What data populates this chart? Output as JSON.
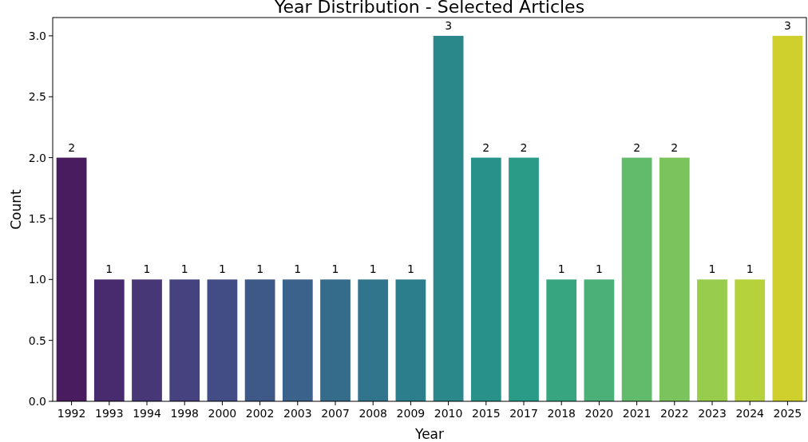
{
  "chart_data": {
    "type": "bar",
    "title": "Year Distribution - Selected Articles",
    "xlabel": "Year",
    "ylabel": "Count",
    "categories": [
      "1992",
      "1993",
      "1994",
      "1998",
      "2000",
      "2002",
      "2003",
      "2007",
      "2008",
      "2009",
      "2010",
      "2015",
      "2017",
      "2018",
      "2020",
      "2021",
      "2022",
      "2023",
      "2024",
      "2025"
    ],
    "values": [
      2,
      1,
      1,
      1,
      1,
      1,
      1,
      1,
      1,
      1,
      3,
      2,
      2,
      1,
      1,
      2,
      2,
      1,
      1,
      3
    ],
    "colors": [
      "#481c5e",
      "#482a6e",
      "#473777",
      "#45427f",
      "#424d85",
      "#3e5888",
      "#3a628b",
      "#356c8c",
      "#31758c",
      "#2d7e8c",
      "#2a888b",
      "#289189",
      "#2a9b86",
      "#37a680",
      "#4ab077",
      "#62bb6b",
      "#7bc45d",
      "#97cc4d",
      "#b5d23c",
      "#cfcf2e"
    ],
    "ylim": [
      0,
      3.15
    ],
    "yticks": [
      {
        "value": 0,
        "label": "0.0"
      },
      {
        "value": 0.5,
        "label": "0.5"
      },
      {
        "value": 1,
        "label": "1.0"
      },
      {
        "value": 1.5,
        "label": "1.5"
      },
      {
        "value": 2,
        "label": "2.0"
      },
      {
        "value": 2.5,
        "label": "2.5"
      },
      {
        "value": 3,
        "label": "3.0"
      }
    ],
    "data_labels": true
  }
}
